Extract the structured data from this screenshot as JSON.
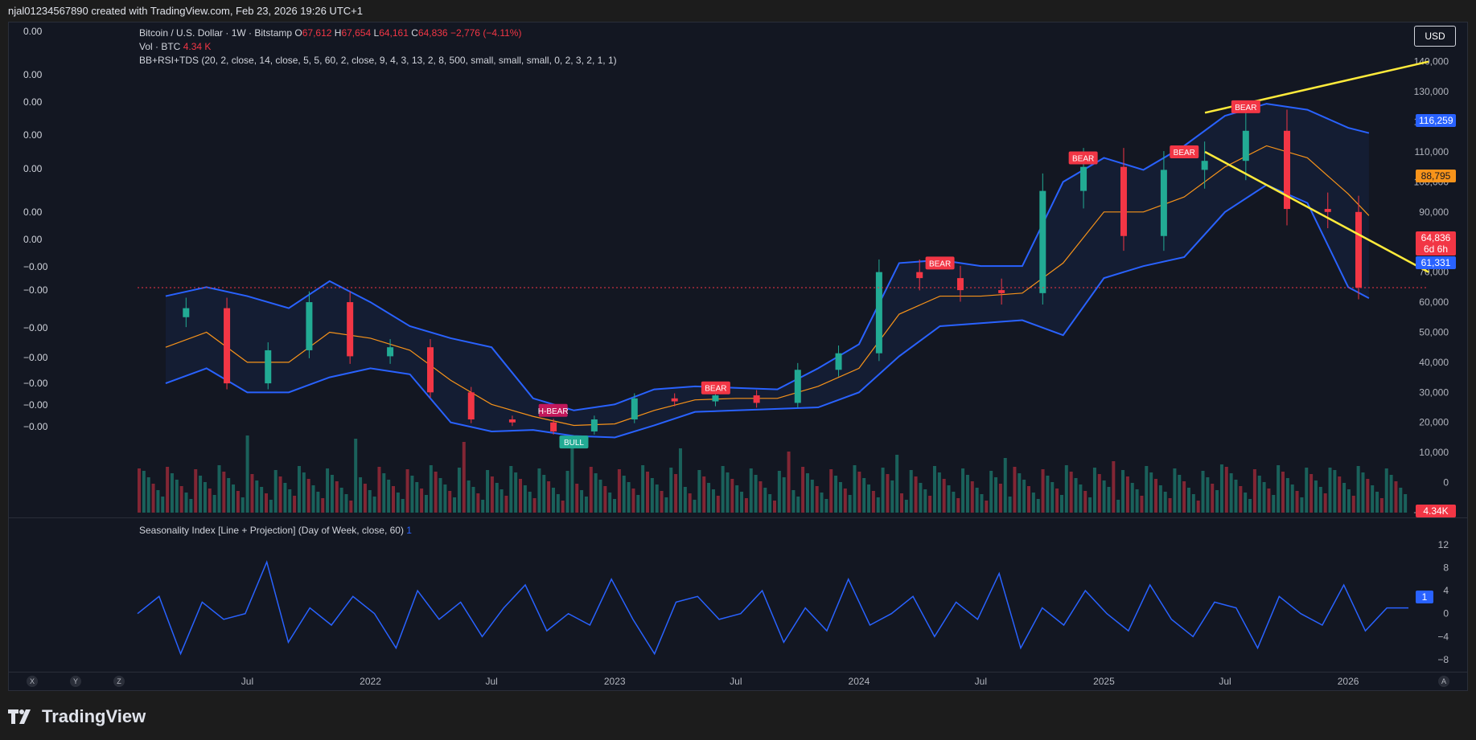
{
  "header": {
    "text": "njal01234567890 created with TradingView.com, Feb 23, 2026 19:26 UTC+1"
  },
  "legend": {
    "symbol": "Bitcoin / U.S. Dollar · 1W · Bitstamp",
    "o_label": "O",
    "o_value": "67,612",
    "h_label": "H",
    "h_value": "67,654",
    "l_label": "L",
    "l_value": "64,161",
    "c_label": "C",
    "c_value": "64,836 −2,776 (−4.11%)",
    "vol_label": "Vol · BTC",
    "vol_value": "4.34 K",
    "indicator": "BB+RSI+TDS (20, 2, close, 14, close, 5, 5, 60, 2, close, 9, 4, 3, 13, 2, 8, 500, small, small, small, 0, 2, 3, 2, 1, 1)"
  },
  "left_axis": [
    "0.00",
    "0.00",
    "0.00",
    "0.00",
    "0.00",
    "0.00",
    "0.00",
    "−0.00",
    "−0.00",
    "−0.00",
    "−0.00",
    "−0.00",
    "−0.00",
    "−0.00"
  ],
  "currency": "USD",
  "price_tags": {
    "upper_band": "116,259",
    "basis": "88,795",
    "last": "64,836",
    "countdown": "6d 6h",
    "lower_band": "61,331",
    "volume": "4.34K",
    "seasonality": "1"
  },
  "pane2": {
    "title": "Seasonality Index [Line + Projection] (Day of Week, close, 60)",
    "value": "1"
  },
  "signals": {
    "bear": "BEAR",
    "h_bear": "H-BEAR",
    "bull": "BULL"
  },
  "x_axis": [
    "Jul",
    "2022",
    "Jul",
    "2023",
    "Jul",
    "2024",
    "Jul",
    "2025",
    "Jul",
    "2026"
  ],
  "corners": [
    "X",
    "Y",
    "Z",
    "A"
  ],
  "footer": {
    "brand": "TradingView"
  },
  "colors": {
    "bull": "#22ab94",
    "bear": "#f23645",
    "band": "#2962ff",
    "basis": "#f7931a",
    "trend": "#ffeb3b",
    "osc": "#2962ff"
  },
  "chart_data": [
    {
      "type": "line",
      "title": "Bitcoin / U.S. Dollar · 1W · Bitstamp",
      "xlabel": "",
      "ylabel": "",
      "x": [
        "2021-03",
        "2021-05",
        "2021-07",
        "2021-09",
        "2021-11",
        "2022-01",
        "2022-03",
        "2022-05",
        "2022-07",
        "2022-09",
        "2022-11",
        "2023-01",
        "2023-03",
        "2023-05",
        "2023-07",
        "2023-09",
        "2023-11",
        "2024-01",
        "2024-03",
        "2024-05",
        "2024-07",
        "2024-09",
        "2024-11",
        "2025-01",
        "2025-03",
        "2025-05",
        "2025-07",
        "2025-09",
        "2025-11",
        "2026-01",
        "2026-02"
      ],
      "series": [
        {
          "name": "close",
          "values": [
            55000,
            58000,
            33000,
            44000,
            60000,
            42000,
            45000,
            30000,
            21000,
            20000,
            17000,
            21000,
            28000,
            27000,
            29000,
            26500,
            37500,
            43000,
            70000,
            68000,
            64000,
            63000,
            97000,
            105000,
            82000,
            104000,
            107000,
            117000,
            91000,
            90000,
            64836
          ]
        },
        {
          "name": "upper band",
          "values": [
            62000,
            65000,
            62000,
            58000,
            67000,
            60000,
            52000,
            48000,
            45000,
            28000,
            24000,
            26000,
            31000,
            32000,
            31500,
            31000,
            38000,
            46000,
            73000,
            74000,
            72000,
            72000,
            100000,
            108000,
            104000,
            112000,
            122000,
            126000,
            124000,
            118000,
            116259
          ]
        },
        {
          "name": "lower band",
          "values": [
            33000,
            38000,
            30000,
            30000,
            35000,
            38000,
            36000,
            20000,
            17000,
            17500,
            15500,
            15000,
            19000,
            23500,
            24000,
            24500,
            25000,
            30000,
            42000,
            52000,
            53000,
            54000,
            49000,
            68000,
            72000,
            75000,
            90000,
            99000,
            93000,
            65000,
            61331
          ]
        },
        {
          "name": "basis",
          "values": [
            45000,
            50000,
            40000,
            40000,
            50000,
            48000,
            44000,
            34000,
            26000,
            22000,
            19000,
            19500,
            24000,
            27500,
            28000,
            28000,
            32000,
            38000,
            56000,
            62000,
            62000,
            63000,
            73000,
            90000,
            90000,
            95000,
            105000,
            112000,
            108000,
            96000,
            88795
          ]
        }
      ],
      "ylim": [
        -10000,
        145000
      ],
      "y_ticks": [
        140000,
        130000,
        120000,
        110000,
        100000,
        90000,
        80000,
        70000,
        60000,
        50000,
        40000,
        30000,
        20000,
        10000,
        0,
        -10000
      ]
    },
    {
      "type": "line",
      "title": "Seasonality Index [Line + Projection] (Day of Week, close, 60)",
      "xlabel": "",
      "ylabel": "",
      "series": [
        {
          "name": "",
          "values": [
            0,
            3,
            -7,
            2,
            -1,
            0,
            9,
            -5,
            1,
            -2,
            3,
            0,
            -6,
            4,
            -1,
            2,
            -4,
            1,
            5,
            -3,
            0,
            -2,
            6,
            -1,
            -7,
            2,
            3,
            -1,
            0,
            4,
            -5,
            1,
            -3,
            6,
            -2,
            0,
            3,
            -4,
            2,
            -1,
            7,
            -6,
            1,
            -2,
            4,
            0,
            -3,
            5,
            -1,
            -4,
            2,
            1,
            -6,
            3,
            0,
            -2,
            5,
            -3,
            1,
            1
          ]
        }
      ],
      "ylim": [
        -9,
        12
      ],
      "y_ticks": [
        12,
        8,
        4,
        0,
        -4,
        -8
      ]
    }
  ]
}
